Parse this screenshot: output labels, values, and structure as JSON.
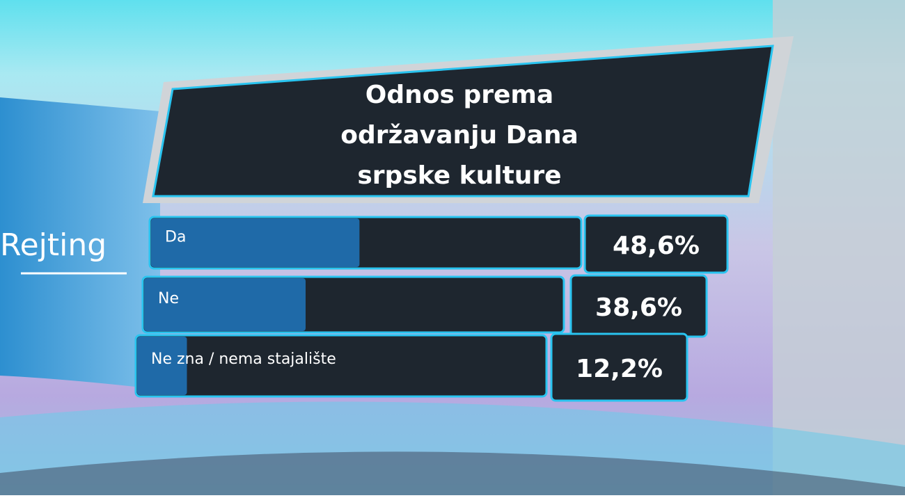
{
  "logo": "Rejting",
  "chart_data": {
    "type": "bar",
    "orientation": "horizontal",
    "title": "Odnos prema održavanju Dana srpske kulture",
    "categories": [
      "Da",
      "Ne",
      "Ne zna / nema stajalište"
    ],
    "values": [
      48.6,
      38.6,
      12.2
    ],
    "value_labels": [
      "48,6%",
      "38,6%",
      "12,2%"
    ],
    "color": "#1f6aa8"
  }
}
